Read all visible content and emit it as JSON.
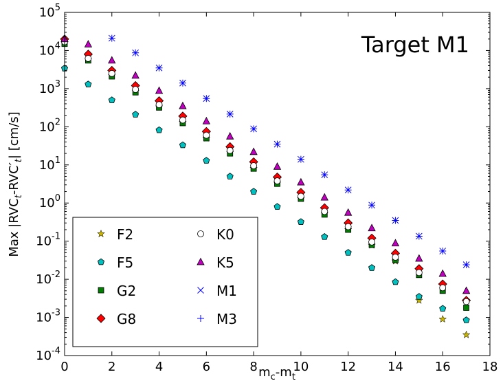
{
  "chart_data": {
    "type": "scatter",
    "title": "",
    "annotation": "Target M1",
    "xlabel": "mc-mt",
    "xlabel_parts": {
      "a": "m",
      "a_sub": "c",
      "dash": "-",
      "b": "m",
      "b_sub": "t"
    },
    "ylabel": "Max |RVCt-RVC't| [cm/s]",
    "ylabel_parts": {
      "p1": "Max |RVC",
      "s1": "t",
      "p2": "-RVC",
      "s2": "t",
      "prime": "′",
      "p3": "|  [cm/s]"
    },
    "xlim": [
      0,
      18
    ],
    "ylim_log10": [
      -4,
      5
    ],
    "yscale": "log",
    "x_ticks": [
      0,
      2,
      4,
      6,
      8,
      10,
      12,
      14,
      16,
      18
    ],
    "x_tick_labels": [
      "0",
      "2",
      "4",
      "6",
      "8",
      "10",
      "12",
      "14",
      "16",
      "18"
    ],
    "y_tick_exponents": [
      -4,
      -3,
      -2,
      -1,
      0,
      1,
      2,
      3,
      4,
      5
    ],
    "legend_position": "lower-left",
    "x": [
      0,
      1,
      2,
      3,
      4,
      5,
      6,
      7,
      8,
      9,
      10,
      11,
      12,
      13,
      14,
      15,
      16,
      17
    ],
    "series": [
      {
        "name": "F2",
        "marker": "star",
        "color": "#c8b400",
        "values": [
          16000,
          5800,
          2200,
          850,
          330,
          130,
          50,
          21,
          8,
          3.3,
          1.3,
          0.52,
          0.2,
          0.078,
          0.03,
          0.0028,
          0.0009,
          0.00035
        ]
      },
      {
        "name": "F5",
        "marker": "pentagon",
        "color": "#00c0c0",
        "values": [
          3400,
          1300,
          500,
          210,
          82,
          33,
          13,
          5,
          2,
          0.8,
          0.32,
          0.13,
          0.05,
          0.02,
          0.0085,
          0.0035,
          0.0017,
          0.00085
        ]
      },
      {
        "name": "G2",
        "marker": "square",
        "color": "#007f00",
        "values": [
          15000,
          5500,
          2100,
          800,
          320,
          125,
          50,
          20,
          8,
          3.2,
          1.3,
          0.5,
          0.2,
          0.08,
          0.032,
          0.013,
          0.005,
          0.0018
        ]
      },
      {
        "name": "G8",
        "marker": "diamond",
        "color": "#ff0000",
        "values": [
          20000,
          8000,
          3000,
          1200,
          480,
          190,
          75,
          30,
          12,
          4.8,
          1.9,
          0.75,
          0.3,
          0.12,
          0.048,
          0.019,
          0.0075,
          0.0028
        ]
      },
      {
        "name": "K0",
        "marker": "circle",
        "color": "#ffffff",
        "values": [
          17000,
          6200,
          2500,
          950,
          380,
          150,
          60,
          24,
          9.5,
          3.8,
          1.5,
          0.6,
          0.24,
          0.095,
          0.038,
          0.015,
          0.006,
          0.0026
        ]
      },
      {
        "name": "K5",
        "marker": "triangle",
        "color": "#bf00bf",
        "values": [
          20000,
          14500,
          5500,
          2200,
          880,
          350,
          140,
          56,
          22,
          9,
          3.5,
          1.4,
          0.56,
          0.22,
          0.088,
          0.035,
          0.014,
          0.005
        ]
      },
      {
        "name": "M1",
        "marker": "x",
        "color": "#0000ff",
        "values": [
          null,
          null,
          21000,
          8700,
          3500,
          1400,
          550,
          215,
          88,
          35,
          14,
          5.5,
          2.2,
          0.88,
          0.35,
          0.135,
          0.055,
          0.024
        ]
      },
      {
        "name": "M3",
        "marker": "plus",
        "color": "#0000ff",
        "values": [
          null,
          null,
          21000,
          8700,
          3500,
          1400,
          550,
          215,
          88,
          35,
          14,
          5.5,
          2.2,
          0.88,
          0.35,
          0.135,
          0.055,
          0.024
        ]
      }
    ]
  }
}
